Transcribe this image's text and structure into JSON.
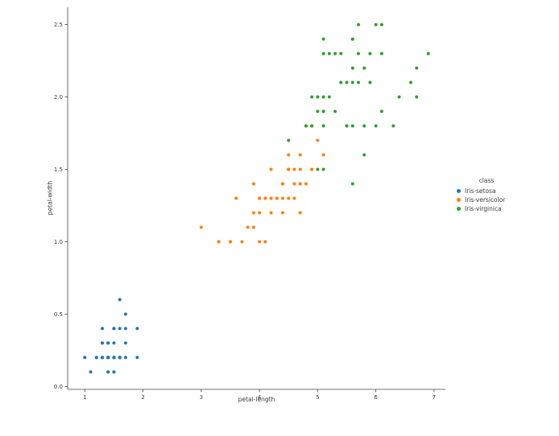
{
  "chart_data": {
    "type": "scatter",
    "title": "",
    "xlabel": "petal-length",
    "ylabel": "petal-width",
    "xlim": [
      0.705,
      7.195
    ],
    "ylim": [
      -0.02,
      2.62
    ],
    "xticks": [
      1,
      2,
      3,
      4,
      5,
      6,
      7
    ],
    "yticks": [
      0.0,
      0.5,
      1.0,
      1.5,
      2.0,
      2.5
    ],
    "grid": false,
    "legend": {
      "title": "class",
      "position": "right"
    },
    "series": [
      {
        "name": "Iris-setosa",
        "color": "#1f77b4",
        "points": [
          [
            1.4,
            0.2
          ],
          [
            1.4,
            0.2
          ],
          [
            1.3,
            0.2
          ],
          [
            1.5,
            0.2
          ],
          [
            1.4,
            0.2
          ],
          [
            1.7,
            0.4
          ],
          [
            1.4,
            0.3
          ],
          [
            1.5,
            0.2
          ],
          [
            1.4,
            0.2
          ],
          [
            1.5,
            0.1
          ],
          [
            1.5,
            0.2
          ],
          [
            1.6,
            0.2
          ],
          [
            1.4,
            0.1
          ],
          [
            1.1,
            0.1
          ],
          [
            1.2,
            0.2
          ],
          [
            1.5,
            0.4
          ],
          [
            1.3,
            0.4
          ],
          [
            1.4,
            0.3
          ],
          [
            1.7,
            0.3
          ],
          [
            1.5,
            0.3
          ],
          [
            1.7,
            0.2
          ],
          [
            1.5,
            0.4
          ],
          [
            1.0,
            0.2
          ],
          [
            1.7,
            0.5
          ],
          [
            1.9,
            0.2
          ],
          [
            1.6,
            0.2
          ],
          [
            1.6,
            0.4
          ],
          [
            1.5,
            0.2
          ],
          [
            1.4,
            0.2
          ],
          [
            1.6,
            0.2
          ],
          [
            1.6,
            0.2
          ],
          [
            1.5,
            0.4
          ],
          [
            1.5,
            0.1
          ],
          [
            1.4,
            0.2
          ],
          [
            1.5,
            0.2
          ],
          [
            1.2,
            0.2
          ],
          [
            1.3,
            0.2
          ],
          [
            1.4,
            0.1
          ],
          [
            1.3,
            0.2
          ],
          [
            1.5,
            0.2
          ],
          [
            1.3,
            0.3
          ],
          [
            1.3,
            0.3
          ],
          [
            1.3,
            0.2
          ],
          [
            1.6,
            0.6
          ],
          [
            1.9,
            0.4
          ],
          [
            1.4,
            0.3
          ],
          [
            1.6,
            0.2
          ],
          [
            1.4,
            0.2
          ],
          [
            1.5,
            0.2
          ],
          [
            1.4,
            0.2
          ]
        ]
      },
      {
        "name": "Iris-versicolor",
        "color": "#ff7f0e",
        "points": [
          [
            4.7,
            1.4
          ],
          [
            4.5,
            1.5
          ],
          [
            4.9,
            1.5
          ],
          [
            4.0,
            1.3
          ],
          [
            4.6,
            1.5
          ],
          [
            4.5,
            1.3
          ],
          [
            4.7,
            1.6
          ],
          [
            3.3,
            1.0
          ],
          [
            4.6,
            1.3
          ],
          [
            3.9,
            1.4
          ],
          [
            3.5,
            1.0
          ],
          [
            4.2,
            1.5
          ],
          [
            4.0,
            1.0
          ],
          [
            4.7,
            1.4
          ],
          [
            3.6,
            1.3
          ],
          [
            4.4,
            1.4
          ],
          [
            4.5,
            1.5
          ],
          [
            4.1,
            1.0
          ],
          [
            4.5,
            1.5
          ],
          [
            3.9,
            1.1
          ],
          [
            4.8,
            1.8
          ],
          [
            4.0,
            1.3
          ],
          [
            4.9,
            1.5
          ],
          [
            4.7,
            1.2
          ],
          [
            4.3,
            1.3
          ],
          [
            4.4,
            1.4
          ],
          [
            4.8,
            1.4
          ],
          [
            5.0,
            1.7
          ],
          [
            4.5,
            1.5
          ],
          [
            3.5,
            1.0
          ],
          [
            3.8,
            1.1
          ],
          [
            3.7,
            1.0
          ],
          [
            3.9,
            1.2
          ],
          [
            5.1,
            1.6
          ],
          [
            4.5,
            1.5
          ],
          [
            4.5,
            1.6
          ],
          [
            4.7,
            1.5
          ],
          [
            4.4,
            1.3
          ],
          [
            4.1,
            1.3
          ],
          [
            4.0,
            1.3
          ],
          [
            4.4,
            1.2
          ],
          [
            4.6,
            1.4
          ],
          [
            4.0,
            1.2
          ],
          [
            3.3,
            1.0
          ],
          [
            4.2,
            1.3
          ],
          [
            4.2,
            1.2
          ],
          [
            4.2,
            1.3
          ],
          [
            4.3,
            1.3
          ],
          [
            3.0,
            1.1
          ],
          [
            4.1,
            1.3
          ]
        ]
      },
      {
        "name": "Iris-virginica",
        "color": "#2ca02c",
        "points": [
          [
            6.0,
            2.5
          ],
          [
            5.1,
            1.9
          ],
          [
            5.9,
            2.1
          ],
          [
            5.6,
            1.8
          ],
          [
            5.8,
            2.2
          ],
          [
            6.6,
            2.1
          ],
          [
            4.5,
            1.7
          ],
          [
            6.3,
            1.8
          ],
          [
            5.8,
            1.8
          ],
          [
            6.1,
            2.5
          ],
          [
            5.1,
            2.0
          ],
          [
            5.3,
            1.9
          ],
          [
            5.5,
            2.1
          ],
          [
            5.0,
            2.0
          ],
          [
            5.1,
            2.4
          ],
          [
            5.3,
            2.3
          ],
          [
            5.5,
            1.8
          ],
          [
            6.7,
            2.2
          ],
          [
            6.9,
            2.3
          ],
          [
            5.0,
            1.5
          ],
          [
            5.7,
            2.3
          ],
          [
            4.9,
            2.0
          ],
          [
            6.7,
            2.0
          ],
          [
            4.9,
            1.8
          ],
          [
            5.7,
            2.1
          ],
          [
            6.0,
            1.8
          ],
          [
            4.8,
            1.8
          ],
          [
            4.9,
            1.8
          ],
          [
            5.6,
            2.1
          ],
          [
            5.8,
            1.6
          ],
          [
            6.1,
            1.9
          ],
          [
            6.4,
            2.0
          ],
          [
            5.6,
            2.2
          ],
          [
            5.1,
            1.5
          ],
          [
            5.6,
            1.4
          ],
          [
            6.1,
            2.3
          ],
          [
            5.6,
            2.4
          ],
          [
            5.5,
            1.8
          ],
          [
            4.8,
            1.8
          ],
          [
            5.4,
            2.1
          ],
          [
            5.6,
            2.4
          ],
          [
            5.1,
            2.3
          ],
          [
            5.1,
            1.9
          ],
          [
            5.9,
            2.3
          ],
          [
            5.7,
            2.5
          ],
          [
            5.2,
            2.3
          ],
          [
            5.0,
            1.9
          ],
          [
            5.2,
            2.0
          ],
          [
            5.4,
            2.3
          ],
          [
            5.1,
            1.8
          ]
        ]
      }
    ]
  }
}
